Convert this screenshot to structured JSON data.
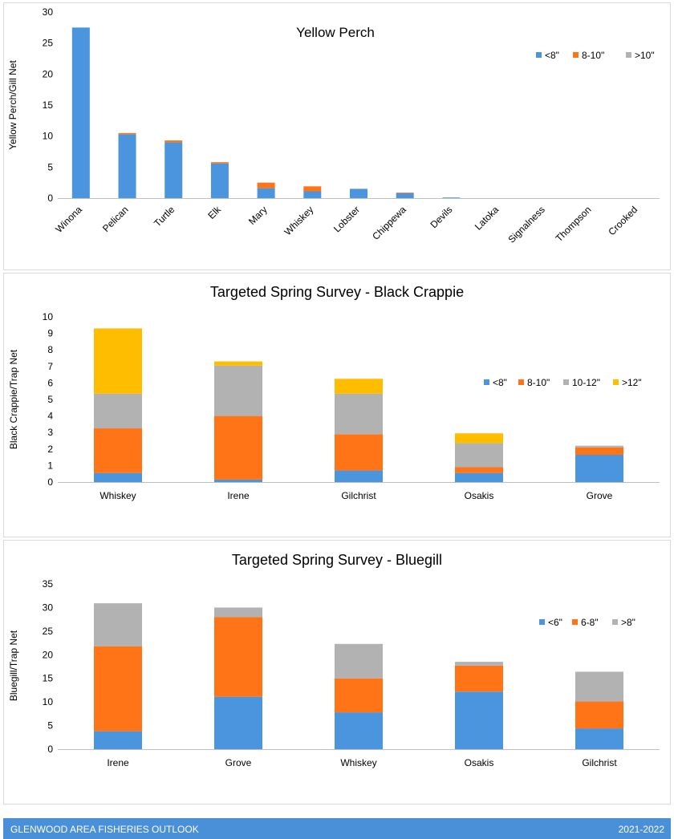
{
  "chart_data": [
    {
      "type": "bar",
      "stacked": true,
      "title": "Yellow Perch",
      "xlabel": "",
      "ylabel": "Yellow Perch/Gill Net",
      "ylim": [
        0,
        30
      ],
      "yticks": [
        0,
        5,
        10,
        15,
        20,
        25,
        30
      ],
      "legend_position": "top-right",
      "categories": [
        "Winona",
        "Pelican",
        "Turtle",
        "Elk",
        "Mary",
        "Whiskey",
        "Lobster",
        "Chippewa",
        "Devils",
        "Latoka",
        "Signalness",
        "Thompson",
        "Crooked"
      ],
      "series": [
        {
          "name": "<8\"",
          "color": "#4a95de",
          "values": [
            27.5,
            10.3,
            9.0,
            5.6,
            1.6,
            1.1,
            1.5,
            0.8,
            0.1,
            0,
            0,
            0,
            0
          ]
        },
        {
          "name": "8-10\"",
          "color": "#ff7417",
          "values": [
            0,
            0.2,
            0.3,
            0.2,
            0.9,
            0.8,
            0,
            0.1,
            0,
            0,
            0,
            0,
            0
          ]
        },
        {
          "name": ">10\"",
          "color": "#b2b2b2",
          "values": [
            0,
            0,
            0,
            0,
            0,
            0,
            0,
            0,
            0,
            0,
            0,
            0,
            0
          ]
        }
      ]
    },
    {
      "type": "bar",
      "stacked": true,
      "title": "Targeted Spring Survey - Black Crappie",
      "xlabel": "",
      "ylabel": "Black Crappie/Trap Net",
      "ylim": [
        0,
        10
      ],
      "yticks": [
        0,
        1,
        2,
        3,
        4,
        5,
        6,
        7,
        8,
        9,
        10
      ],
      "legend_position": "right",
      "categories": [
        "Whiskey",
        "Irene",
        "Gilchrist",
        "Osakis",
        "Grove"
      ],
      "series": [
        {
          "name": "<8\"",
          "color": "#4a95de",
          "values": [
            0.55,
            0.15,
            0.7,
            0.55,
            1.65
          ]
        },
        {
          "name": "8-10\"",
          "color": "#ff7417",
          "values": [
            2.7,
            3.85,
            2.2,
            0.35,
            0.45
          ]
        },
        {
          "name": "10-12\"",
          "color": "#b2b2b2",
          "values": [
            2.1,
            3.05,
            2.45,
            1.45,
            0.1
          ]
        },
        {
          "name": ">12\"",
          "color": "#ffbd00",
          "values": [
            3.95,
            0.25,
            0.9,
            0.6,
            0
          ]
        }
      ]
    },
    {
      "type": "bar",
      "stacked": true,
      "title": "Targeted Spring Survey - Bluegill",
      "xlabel": "",
      "ylabel": "Bluegill/Trap Net",
      "ylim": [
        0,
        35
      ],
      "yticks": [
        0,
        5,
        10,
        15,
        20,
        25,
        30,
        35
      ],
      "legend_position": "top-right",
      "categories": [
        "Irene",
        "Grove",
        "Whiskey",
        "Osakis",
        "Gilchrist"
      ],
      "series": [
        {
          "name": "<6\"",
          "color": "#4a95de",
          "values": [
            3.8,
            11.1,
            7.8,
            12.2,
            4.4
          ]
        },
        {
          "name": "6-8\"",
          "color": "#ff7417",
          "values": [
            18.0,
            16.9,
            7.2,
            5.5,
            5.7
          ]
        },
        {
          "name": ">8\"",
          "color": "#b2b2b2",
          "values": [
            9.1,
            2.0,
            7.3,
            0.8,
            6.3
          ]
        }
      ]
    }
  ],
  "footer": {
    "left": "GLENWOOD AREA FISHERIES OUTLOOK",
    "right": "2021-2022"
  }
}
